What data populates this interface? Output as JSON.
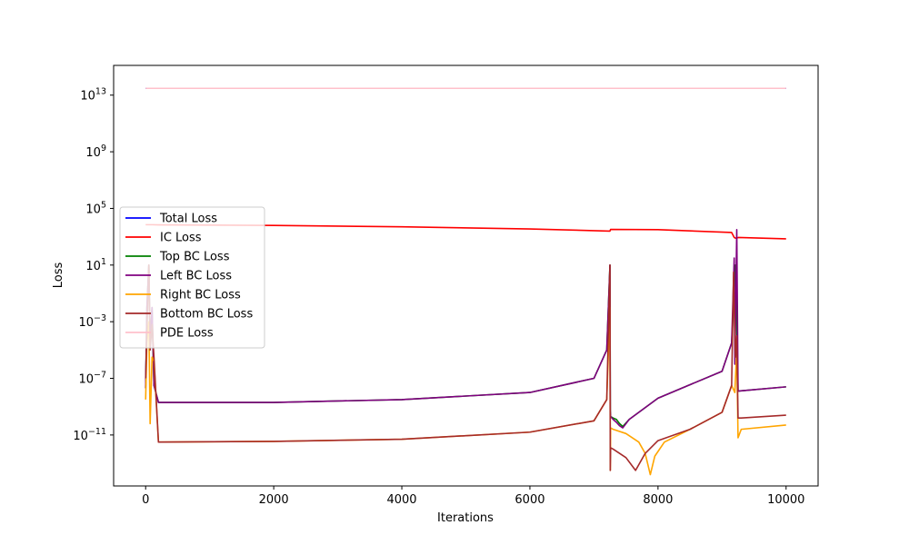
{
  "chart_data": {
    "type": "line",
    "xlabel": "Iterations",
    "ylabel": "Loss",
    "x_scale": "linear",
    "y_scale": "log",
    "xlim": [
      -500,
      10500
    ],
    "ylim_exponent": [
      -14.6,
      15.1
    ],
    "x_ticks": [
      0,
      2000,
      4000,
      6000,
      8000,
      10000
    ],
    "x_tick_labels": [
      "0",
      "2000",
      "4000",
      "6000",
      "8000",
      "10000"
    ],
    "y_tick_exponents": [
      -11,
      -7,
      -3,
      1,
      5,
      9,
      13
    ],
    "y_tick_labels": [
      {
        "base": "10",
        "exp": "−11"
      },
      {
        "base": "10",
        "exp": "−7"
      },
      {
        "base": "10",
        "exp": "−3"
      },
      {
        "base": "10",
        "exp": "1"
      },
      {
        "base": "10",
        "exp": "5"
      },
      {
        "base": "10",
        "exp": "9"
      },
      {
        "base": "10",
        "exp": "13"
      }
    ],
    "grid": false,
    "legend_position": "center-left",
    "series": [
      {
        "name": "Total Loss",
        "color": "#0000ff",
        "x": [
          0,
          10000
        ],
        "log10_y": [
          13.48,
          13.48
        ]
      },
      {
        "name": "IC Loss",
        "color": "#ff0000",
        "x": [
          0,
          100,
          200,
          2000,
          4000,
          6000,
          7250,
          7260,
          8000,
          9150,
          9190,
          9210,
          9260,
          10000
        ],
        "log10_y": [
          3.85,
          3.85,
          3.84,
          3.8,
          3.7,
          3.55,
          3.4,
          3.52,
          3.5,
          3.3,
          2.95,
          2.9,
          2.95,
          2.85
        ]
      },
      {
        "name": "Top BC Loss",
        "color": "#008000",
        "x": [
          0,
          20,
          50,
          70,
          100,
          130,
          200,
          2000,
          4000,
          6000,
          7000,
          7200,
          7250,
          7255,
          7260,
          7300,
          7350,
          7400,
          7450,
          7550,
          8000,
          9000,
          9150,
          9210,
          9250,
          10000
        ],
        "log10_y": [
          -7.7,
          -2.0,
          1.0,
          -4.5,
          -2.0,
          -7.5,
          -8.7,
          -8.7,
          -8.5,
          -8.0,
          -7.0,
          -5.0,
          1.0,
          -9.3,
          -9.7,
          -9.8,
          -9.9,
          -10.2,
          -10.4,
          -9.9,
          -8.4,
          -6.5,
          -4.5,
          1.0,
          -7.9,
          -7.6
        ]
      },
      {
        "name": "Left BC Loss",
        "color": "#800080",
        "x": [
          0,
          20,
          50,
          70,
          100,
          130,
          200,
          2000,
          4000,
          6000,
          7000,
          7200,
          7250,
          7255,
          7260,
          7300,
          7350,
          7400,
          7450,
          7550,
          8000,
          9000,
          9150,
          9190,
          9200,
          9230,
          9250,
          10000
        ],
        "log10_y": [
          -7.7,
          -2.0,
          1.0,
          -4.5,
          -2.0,
          -7.5,
          -8.7,
          -8.7,
          -8.5,
          -8.0,
          -7.0,
          -5.0,
          1.0,
          -9.3,
          -9.7,
          -9.9,
          -10.1,
          -10.35,
          -10.5,
          -9.9,
          -8.4,
          -6.5,
          -4.5,
          1.5,
          -6.0,
          3.5,
          -7.9,
          -7.6
        ]
      },
      {
        "name": "Right BC Loss",
        "color": "#ffa500",
        "x": [
          0,
          20,
          50,
          70,
          100,
          130,
          200,
          2000,
          4000,
          6000,
          7000,
          7200,
          7250,
          7255,
          7260,
          7300,
          7500,
          7700,
          7800,
          7880,
          7950,
          8100,
          8500,
          9000,
          9150,
          9200,
          9230,
          9250,
          9300,
          10000
        ],
        "log10_y": [
          -8.5,
          -4.5,
          -3.0,
          -10.2,
          -5.5,
          -5.8,
          -11.5,
          -11.45,
          -11.3,
          -10.8,
          -10.0,
          -8.5,
          -2.0,
          -13.5,
          -10.5,
          -10.6,
          -10.9,
          -11.5,
          -12.3,
          -13.8,
          -12.5,
          -11.5,
          -10.6,
          -9.4,
          -7.5,
          -8.0,
          -5.0,
          -11.2,
          -10.6,
          -10.3
        ]
      },
      {
        "name": "Bottom BC Loss",
        "color": "#a52a2a",
        "x": [
          0,
          20,
          50,
          70,
          100,
          130,
          200,
          2000,
          4000,
          6000,
          7000,
          7200,
          7250,
          7255,
          7260,
          7300,
          7500,
          7650,
          7800,
          8000,
          8500,
          9000,
          9150,
          9180,
          9200,
          9210,
          9230,
          9250,
          9300,
          10000
        ],
        "log10_y": [
          -7.0,
          -3.5,
          1.0,
          -5.0,
          -3.2,
          -5.5,
          -11.5,
          -11.45,
          -11.3,
          -10.8,
          -10.0,
          -8.5,
          1.0,
          -13.5,
          -11.9,
          -12.0,
          -12.6,
          -13.5,
          -12.3,
          -11.4,
          -10.6,
          -9.4,
          -7.5,
          0.5,
          -4.0,
          -5.5,
          -4.0,
          -9.8,
          -9.8,
          -9.6
        ]
      },
      {
        "name": "PDE Loss",
        "color": "#ffc0cb",
        "x": [
          0,
          10000
        ],
        "log10_y": [
          13.48,
          13.48
        ]
      }
    ]
  }
}
